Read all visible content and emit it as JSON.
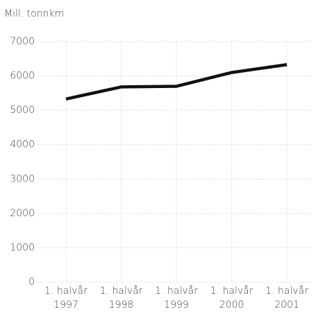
{
  "chart_data": {
    "type": "line",
    "y_label": "Mill. tonnkm",
    "categories": [
      [
        "1. halvår",
        "1997"
      ],
      [
        "1. halvår",
        "1998"
      ],
      [
        "1. halvår",
        "1999"
      ],
      [
        "1. halvår",
        "2000"
      ],
      [
        "1. halvår",
        "2001"
      ]
    ],
    "series": [
      {
        "color": "#111111",
        "values": [
          5330,
          5680,
          5700,
          6100,
          6330
        ]
      }
    ],
    "ylim": [
      0,
      7000
    ],
    "yticks": [
      0,
      1000,
      2000,
      3000,
      4000,
      5000,
      6000,
      7000
    ],
    "grid": true
  }
}
